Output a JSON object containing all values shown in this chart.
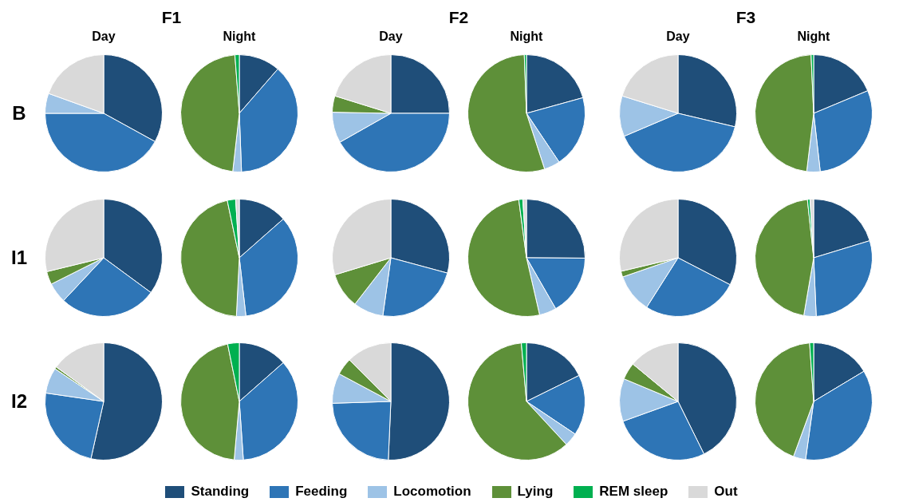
{
  "chart_data": [
    {
      "type": "pie",
      "title": "Day",
      "annotations": [
        "F1"
      ],
      "ylabel": "B",
      "legend": "bottom",
      "categories": [
        "Standing",
        "Feeding",
        "Locomotion",
        "Lying",
        "REM sleep",
        "Out"
      ],
      "values": [
        33,
        42,
        5.5,
        0,
        0,
        19.5
      ],
      "colors": [
        "#1f4e79",
        "#2e75b6",
        "#9dc3e6",
        "#5e9039",
        "#00b050",
        "#d9d9d9"
      ]
    },
    {
      "type": "pie",
      "title": "Night",
      "categories": [
        null,
        null,
        null,
        null,
        null,
        null
      ],
      "values": [
        11.4,
        38,
        2.4,
        47,
        1.2,
        0
      ],
      "colors": [
        "#1f4e79",
        "#2e75b6",
        "#9dc3e6",
        "#5e9039",
        "#00b050",
        "#d9d9d9"
      ]
    },
    {
      "type": "pie",
      "title": "Day",
      "annotations": [
        "F2"
      ],
      "categories": [
        null,
        null,
        null,
        null,
        null,
        null
      ],
      "values": [
        25,
        41.8,
        8.5,
        4.5,
        0,
        20.2
      ],
      "colors": [
        "#1f4e79",
        "#2e75b6",
        "#9dc3e6",
        "#5e9039",
        "#00b050",
        "#d9d9d9"
      ]
    },
    {
      "type": "pie",
      "title": "Night",
      "categories": [
        null,
        null,
        null,
        null,
        null,
        null
      ],
      "values": [
        20.7,
        19.9,
        4.4,
        54.4,
        0.6,
        0
      ],
      "colors": [
        "#1f4e79",
        "#2e75b6",
        "#9dc3e6",
        "#5e9039",
        "#00b050",
        "#d9d9d9"
      ]
    },
    {
      "type": "pie",
      "title": "Day",
      "annotations": [
        "F3"
      ],
      "categories": [
        null,
        null,
        null,
        null,
        null,
        null
      ],
      "values": [
        28.7,
        39.9,
        11.2,
        0,
        0,
        20.2
      ],
      "colors": [
        "#1f4e79",
        "#2e75b6",
        "#9dc3e6",
        "#5e9039",
        "#00b050",
        "#d9d9d9"
      ]
    },
    {
      "type": "pie",
      "title": "Night",
      "categories": [
        null,
        null,
        null,
        null,
        null,
        null
      ],
      "values": [
        18.7,
        29.5,
        3.7,
        47.4,
        0.7,
        0
      ],
      "colors": [
        "#1f4e79",
        "#2e75b6",
        "#9dc3e6",
        "#5e9039",
        "#00b050",
        "#d9d9d9"
      ]
    },
    {
      "type": "pie",
      "ylabel": "I1",
      "categories": [
        null,
        null,
        null,
        null,
        null,
        null
      ],
      "values": [
        35.1,
        26.9,
        5.6,
        3.6,
        0,
        28.8
      ],
      "colors": [
        "#1f4e79",
        "#2e75b6",
        "#9dc3e6",
        "#5e9039",
        "#00b050",
        "#d9d9d9"
      ]
    },
    {
      "type": "pie",
      "categories": [
        null,
        null,
        null,
        null,
        null,
        null
      ],
      "values": [
        13.5,
        34.7,
        2.6,
        45.9,
        2.3,
        1
      ],
      "colors": [
        "#1f4e79",
        "#2e75b6",
        "#9dc3e6",
        "#5e9039",
        "#00b050",
        "#d9d9d9"
      ]
    },
    {
      "type": "pie",
      "categories": [
        null,
        null,
        null,
        null,
        null,
        null
      ],
      "values": [
        29.2,
        23,
        8.3,
        9.8,
        0,
        29.7
      ],
      "colors": [
        "#1f4e79",
        "#2e75b6",
        "#9dc3e6",
        "#5e9039",
        "#00b050",
        "#d9d9d9"
      ]
    },
    {
      "type": "pie",
      "categories": [
        null,
        null,
        null,
        null,
        null,
        null
      ],
      "values": [
        25.1,
        16.6,
        4.7,
        51.5,
        1.1,
        1
      ],
      "colors": [
        "#1f4e79",
        "#2e75b6",
        "#9dc3e6",
        "#5e9039",
        "#00b050",
        "#d9d9d9"
      ]
    },
    {
      "type": "pie",
      "categories": [
        null,
        null,
        null,
        null,
        null,
        null
      ],
      "values": [
        32.6,
        26.4,
        10.7,
        1.6,
        0,
        28.7
      ],
      "colors": [
        "#1f4e79",
        "#2e75b6",
        "#9dc3e6",
        "#5e9039",
        "#00b050",
        "#d9d9d9"
      ]
    },
    {
      "type": "pie",
      "categories": [
        null,
        null,
        null,
        null,
        null,
        null
      ],
      "values": [
        20.3,
        29,
        3.4,
        45.6,
        0.7,
        1
      ],
      "colors": [
        "#1f4e79",
        "#2e75b6",
        "#9dc3e6",
        "#5e9039",
        "#00b050",
        "#d9d9d9"
      ]
    },
    {
      "type": "pie",
      "ylabel": "I2",
      "categories": [
        null,
        null,
        null,
        null,
        null,
        null
      ],
      "values": [
        53.5,
        23.8,
        7.1,
        0.6,
        0,
        15
      ],
      "colors": [
        "#1f4e79",
        "#2e75b6",
        "#9dc3e6",
        "#5e9039",
        "#00b050",
        "#d9d9d9"
      ]
    },
    {
      "type": "pie",
      "categories": [
        null,
        null,
        null,
        null,
        null,
        null
      ],
      "values": [
        13.5,
        35.4,
        2.5,
        45.4,
        3.2,
        0
      ],
      "colors": [
        "#1f4e79",
        "#2e75b6",
        "#9dc3e6",
        "#5e9039",
        "#00b050",
        "#d9d9d9"
      ]
    },
    {
      "type": "pie",
      "categories": [
        null,
        null,
        null,
        null,
        null,
        null
      ],
      "values": [
        50.7,
        23.8,
        8.3,
        4.7,
        0,
        12.5
      ],
      "colors": [
        "#1f4e79",
        "#2e75b6",
        "#9dc3e6",
        "#5e9039",
        "#00b050",
        "#d9d9d9"
      ]
    },
    {
      "type": "pie",
      "categories": [
        null,
        null,
        null,
        null,
        null,
        null
      ],
      "values": [
        17.7,
        16.7,
        3.7,
        60.5,
        1.4,
        0
      ],
      "colors": [
        "#1f4e79",
        "#2e75b6",
        "#9dc3e6",
        "#5e9039",
        "#00b050",
        "#d9d9d9"
      ]
    },
    {
      "type": "pie",
      "categories": [
        null,
        null,
        null,
        null,
        null,
        null
      ],
      "values": [
        42.7,
        26.8,
        11.8,
        4.7,
        0,
        14
      ],
      "colors": [
        "#1f4e79",
        "#2e75b6",
        "#9dc3e6",
        "#5e9039",
        "#00b050",
        "#d9d9d9"
      ]
    },
    {
      "type": "pie",
      "categories": [
        null,
        null,
        null,
        null,
        null,
        null
      ],
      "values": [
        16.4,
        35.8,
        3.4,
        43.3,
        1.1,
        0
      ],
      "colors": [
        "#1f4e79",
        "#2e75b6",
        "#9dc3e6",
        "#5e9039",
        "#00b050",
        "#d9d9d9"
      ]
    }
  ]
}
